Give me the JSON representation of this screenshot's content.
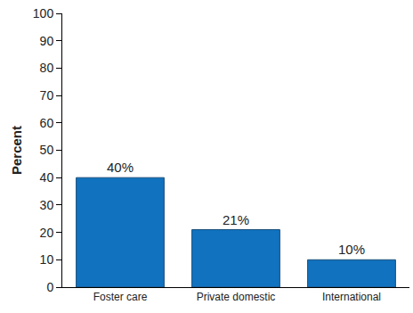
{
  "chart_data": {
    "type": "bar",
    "y_label": "Percent",
    "categories": [
      "Foster care",
      "Private domestic",
      "International"
    ],
    "values": [
      40,
      21,
      10
    ],
    "value_labels": [
      "40%",
      "21%",
      "10%"
    ],
    "data_labels": true,
    "color": "#1172bf",
    "ylim": [
      0,
      100
    ],
    "yticks": [
      0,
      10,
      20,
      30,
      40,
      50,
      60,
      70,
      80,
      90,
      100
    ],
    "grid": false
  }
}
